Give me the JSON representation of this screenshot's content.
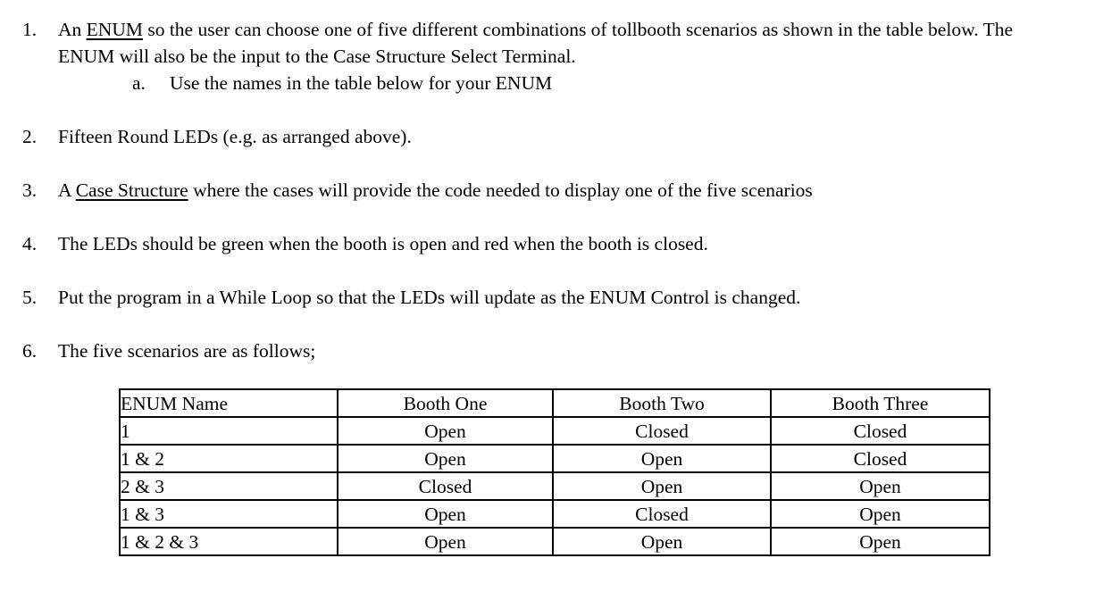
{
  "page": {
    "background_color": "#ffffff",
    "text_color": "#000000"
  },
  "list": {
    "items": [
      {
        "number": "1.",
        "segments": [
          {
            "text": "An ",
            "underline": false
          },
          {
            "text": "ENUM",
            "underline": true
          },
          {
            "text": " so the user can choose one of five different combinations of tollbooth scenarios as shown in the table below. The ENUM will also be the input to the Case Structure Select Terminal.",
            "underline": false
          }
        ],
        "sub_items": [
          {
            "letter": "a.",
            "text": "Use the names in the table below for your ENUM"
          }
        ]
      },
      {
        "number": "2.",
        "segments": [
          {
            "text": "Fifteen Round LEDs (e.g. as arranged above).",
            "underline": false
          }
        ],
        "sub_items": []
      },
      {
        "number": "3.",
        "segments": [
          {
            "text": "A ",
            "underline": false
          },
          {
            "text": "Case Structure",
            "underline": true
          },
          {
            "text": " where the cases will provide the code needed to display one of the five scenarios",
            "underline": false
          }
        ],
        "sub_items": []
      },
      {
        "number": "4.",
        "segments": [
          {
            "text": "The LEDs should be green when the booth is open and red when the booth is closed.",
            "underline": false
          }
        ],
        "sub_items": []
      },
      {
        "number": "5.",
        "segments": [
          {
            "text": "Put the program in a While Loop so that the LEDs will update as the ENUM Control is changed.",
            "underline": false
          }
        ],
        "sub_items": []
      },
      {
        "number": "6.",
        "segments": [
          {
            "text": "The five scenarios are as follows;",
            "underline": false
          }
        ],
        "sub_items": []
      }
    ]
  },
  "table": {
    "headers": [
      "ENUM Name",
      "Booth One",
      "Booth Two",
      "Booth Three"
    ],
    "rows": [
      [
        "1",
        "Open",
        "Closed",
        "Closed"
      ],
      [
        "1 & 2",
        "Open",
        "Open",
        "Closed"
      ],
      [
        "2 & 3",
        "Closed",
        "Open",
        "Open"
      ],
      [
        "1 & 3",
        "Open",
        "Closed",
        "Open"
      ],
      [
        "1 & 2 & 3",
        "Open",
        "Open",
        "Open"
      ]
    ]
  }
}
